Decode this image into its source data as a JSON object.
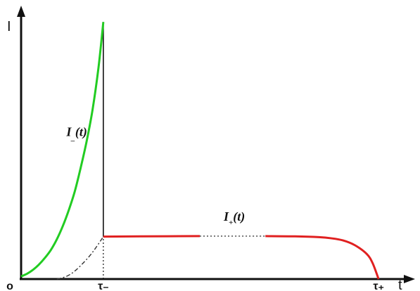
{
  "chart_data": {
    "type": "line",
    "title": "",
    "xlabel": "t",
    "ylabel": "I",
    "grid": false,
    "xlim": [
      0,
      3.2
    ],
    "ylim": [
      0,
      1
    ],
    "x_ticks": [
      {
        "value": 0,
        "label": "o"
      },
      {
        "value": 0.69,
        "label": "τ₋"
      },
      {
        "value": 3.0,
        "label": "τ₊"
      }
    ],
    "series": [
      {
        "name": "I₋(t)",
        "label_main": "I",
        "label_sub": "_",
        "label_suffix": "(t)",
        "color": "#22cc22",
        "style": "solid",
        "label_at": [
          0.38,
          0.54
        ],
        "x": [
          0,
          0.05,
          0.1,
          0.15,
          0.2,
          0.25,
          0.3,
          0.35,
          0.4,
          0.45,
          0.5,
          0.55,
          0.6,
          0.65,
          0.69
        ],
        "y": [
          0.01,
          0.02,
          0.035,
          0.055,
          0.08,
          0.11,
          0.15,
          0.2,
          0.26,
          0.33,
          0.42,
          0.52,
          0.64,
          0.8,
          0.97
        ]
      },
      {
        "name": "I₊(t)",
        "label_main": "I",
        "label_sub": "+",
        "label_suffix": "(t)",
        "color": "#e02020",
        "style": "solid-with-dotted-gap",
        "label_at": [
          1.7,
          0.22
        ],
        "gap": [
          1.5,
          2.05
        ],
        "x": [
          0.69,
          1.0,
          1.5,
          2.05,
          2.3,
          2.5,
          2.6,
          2.7,
          2.8,
          2.9,
          2.95,
          3.0
        ],
        "y": [
          0.16,
          0.161,
          0.162,
          0.162,
          0.161,
          0.158,
          0.154,
          0.146,
          0.128,
          0.095,
          0.06,
          0.0
        ]
      }
    ],
    "reference_lines": [
      {
        "kind": "dash-dot-curve",
        "color": "#333333",
        "x": [
          0.3,
          0.38,
          0.45,
          0.52,
          0.58,
          0.63,
          0.69
        ],
        "y": [
          0.0,
          0.01,
          0.03,
          0.06,
          0.09,
          0.12,
          0.16
        ]
      },
      {
        "kind": "vertical",
        "color": "#111111",
        "x": [
          0.69,
          0.69
        ],
        "y": [
          0.16,
          0.97
        ]
      },
      {
        "kind": "vertical-dotted",
        "color": "#111111",
        "x": [
          0.69,
          0.69
        ],
        "y": [
          0.0,
          0.16
        ]
      }
    ]
  }
}
